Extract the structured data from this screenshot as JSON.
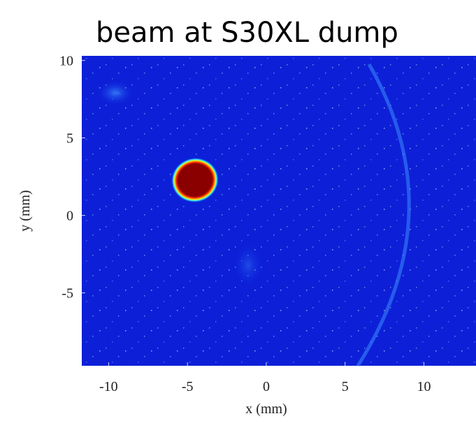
{
  "chart_data": {
    "type": "image",
    "title": "beam at S30XL dump",
    "xlabel": "x  (mm)",
    "ylabel": "y  (mm)",
    "xlim": [
      -11.7,
      13.3
    ],
    "ylim": [
      -9.7,
      10.3
    ],
    "xticks": [
      -10,
      -5,
      0,
      5,
      10
    ],
    "yticks": [
      10,
      5,
      0,
      -5
    ]
  }
}
